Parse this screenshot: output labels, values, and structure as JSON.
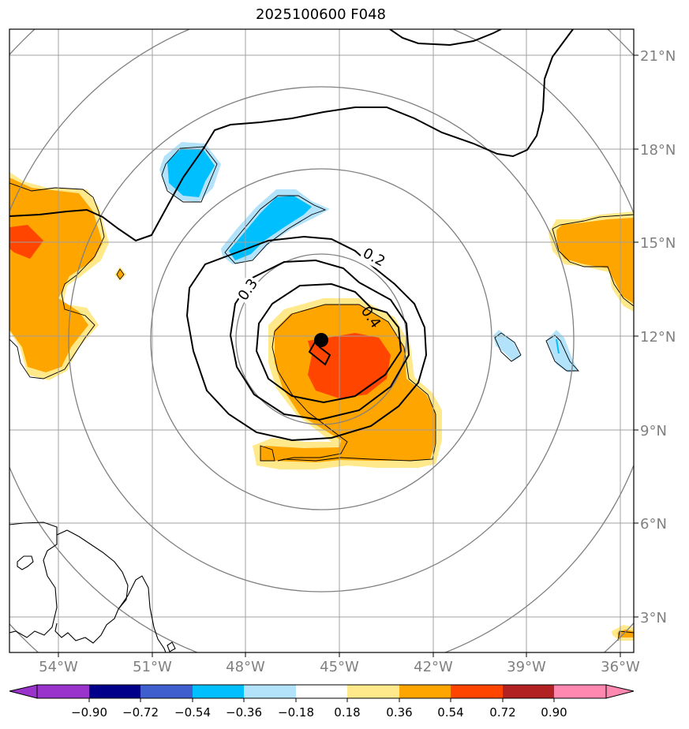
{
  "title": "2025100600 F048",
  "map": {
    "lon_range": [
      -55,
      -35.6
    ],
    "lat_range": [
      2,
      22
    ],
    "lon_ticks": [
      {
        "value": -54,
        "label": "54°W"
      },
      {
        "value": -51,
        "label": "51°W"
      },
      {
        "value": -48,
        "label": "48°W"
      },
      {
        "value": -45,
        "label": "45°W"
      },
      {
        "value": -42,
        "label": "42°W"
      },
      {
        "value": -39,
        "label": "39°W"
      },
      {
        "value": -36,
        "label": "36°W"
      }
    ],
    "lat_ticks": [
      {
        "value": 21,
        "label": "21°N"
      },
      {
        "value": 18,
        "label": "18°N"
      },
      {
        "value": 15,
        "label": "15°N"
      },
      {
        "value": 12,
        "label": "12°N"
      },
      {
        "value": 9,
        "label": "9°N"
      },
      {
        "value": 6,
        "label": "6°N"
      },
      {
        "value": 3,
        "label": "3°N"
      }
    ],
    "center_marker": {
      "lon": -45.6,
      "lat": 11.8
    },
    "contour_labels": [
      "0.2",
      "0.3",
      "0.4"
    ],
    "range_rings_count": 5
  },
  "colorbar": {
    "ticks": [
      "−0.90",
      "−0.72",
      "−0.54",
      "−0.36",
      "−0.18",
      "0.18",
      "0.36",
      "0.54",
      "0.72",
      "0.90"
    ],
    "colors": [
      "#9933cc",
      "#00008b",
      "#3f5fcf",
      "#00bfff",
      "#b3e2fb",
      "#ffffff",
      "#ffe98a",
      "#ffa500",
      "#ff4500",
      "#b22222",
      "#ff88b0"
    ]
  },
  "colors": {
    "grid": "#a0a0a0",
    "rings": "#808080",
    "tick_label": "#808080",
    "orange": "#ffa500",
    "red_orange": "#ff4500",
    "light_yellow": "#ffe98a",
    "cyan": "#00bfff",
    "light_blue": "#b3e2fb"
  }
}
